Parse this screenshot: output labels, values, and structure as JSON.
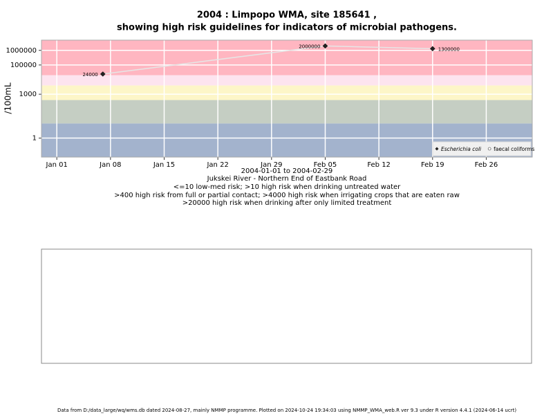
{
  "chart_data": {
    "type": "line",
    "title": [
      "2004 : Limpopo WMA, site 185641 ,",
      "showing high risk guidelines for indicators of microbial pathogens."
    ],
    "y_label": "/100mL",
    "x_label": "2004-01-01 to 2004-02-29",
    "notes": [
      "Jukskei River - Northern End of Eastbank Road",
      "<=10 low-med risk; >10 high risk when drinking untreated water",
      ">400 high risk from full or partial contact; >4000 high risk when irrigating crops that are eaten raw",
      ">20000 high risk when drinking after only limited treatment"
    ],
    "footer": "Data from D:/data_large/wq/wms.db dated 2024-08-27, mainly NMMP programme. Plotted on 2024-10-24 19:34:03 using NMMP_WMA_web.R ver 9.3 under R version 4.4.1 (2024-06-14 ucrt)",
    "x": [
      "2004-01-07",
      "2004-02-05",
      "2004-02-19"
    ],
    "series": [
      {
        "name": "Escherichia coli",
        "color": "#222222",
        "values": [
          24000,
          2000000,
          1300000
        ]
      },
      {
        "name": "faecal coliforms",
        "color": "#ffffff",
        "values": [
          null,
          null,
          null
        ]
      }
    ],
    "line_color": "#e6e6e6",
    "log_y": true,
    "ylim": [
      0.05,
      5000000
    ],
    "yticks": [
      1,
      1000,
      100000,
      1000000
    ],
    "xlim": [
      "2003-12-30",
      "2004-03-03"
    ],
    "xticks": [
      {
        "value": "2004-01-01",
        "label": "Jan 01"
      },
      {
        "value": "2004-01-08",
        "label": "Jan 08"
      },
      {
        "value": "2004-01-15",
        "label": "Jan 15"
      },
      {
        "value": "2004-01-22",
        "label": "Jan 22"
      },
      {
        "value": "2004-01-29",
        "label": "Jan 29"
      },
      {
        "value": "2004-02-05",
        "label": "Feb 05"
      },
      {
        "value": "2004-02-12",
        "label": "Feb 12"
      },
      {
        "value": "2004-02-19",
        "label": "Feb 19"
      },
      {
        "value": "2004-02-26",
        "label": "Feb 26"
      }
    ],
    "bands": [
      {
        "from": 0.05,
        "to": 10,
        "color": "#a3b3cd"
      },
      {
        "from": 10,
        "to": 400,
        "color": "#c5cec3"
      },
      {
        "from": 400,
        "to": 4000,
        "color": "#fdf6c8"
      },
      {
        "from": 4000,
        "to": 20000,
        "color": "#fde4ef"
      },
      {
        "from": 20000,
        "to": 5000000,
        "color": "#ffb6c1"
      }
    ],
    "grid": true,
    "legend": "bottom-right"
  }
}
